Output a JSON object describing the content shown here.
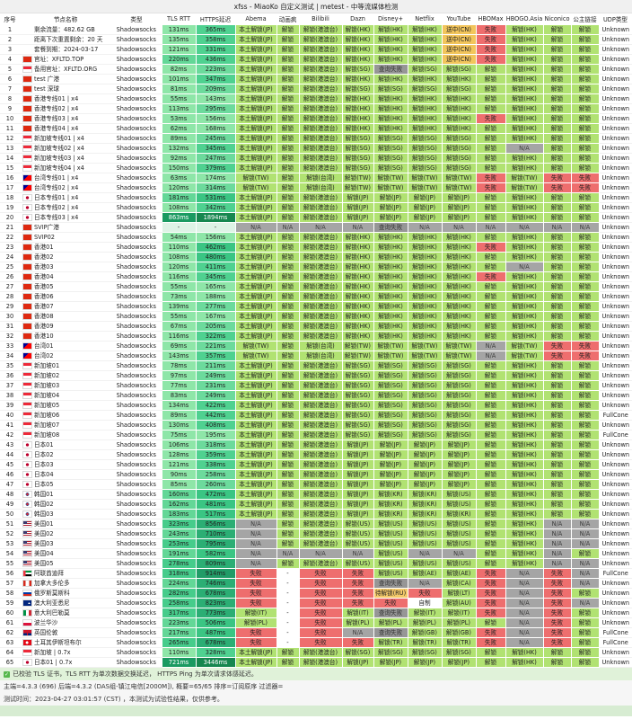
{
  "title": "xfss - MiaoKo 自定义测试 | metest - 中等流媒体检测",
  "table": {
    "columns": [
      "序号",
      "节点名称",
      "类型",
      "TLS RTT",
      "HTTPS延迟",
      "Abema",
      "动画疯",
      "Bilibili",
      "Dazn",
      "Disney+",
      "Netflix",
      "YouTube",
      "HBOMax",
      "HBOGO.Asia",
      "Niconico",
      "公主链接",
      "UDP类型"
    ],
    "type_label": "Shadowsocks",
    "rows": [
      [
        "",
        "剩余流量：482.62 GB",
        "131ms",
        "365ms",
        "本土解锁(JP)",
        "解锁",
        "解锁(港澳台)",
        "解锁(HK)",
        "解锁(HK)",
        "解锁(HK)",
        "送中(CN)",
        "失败",
        "解锁(HK)",
        "解锁",
        "解锁",
        "Unknown"
      ],
      [
        "",
        "距离下次重置剩余：20 天",
        "135ms",
        "358ms",
        "本土解锁(JP)",
        "解锁",
        "解锁(港澳台)",
        "解锁(HK)",
        "解锁(HK)",
        "解锁(HK)",
        "送中(CN)",
        "失败",
        "解锁(HK)",
        "解锁",
        "解锁",
        "Unknown"
      ],
      [
        "",
        "套餐到期：2024-03-17",
        "121ms",
        "331ms",
        "本土解锁(JP)",
        "解锁",
        "解锁(港澳台)",
        "解锁(HK)",
        "解锁(HK)",
        "解锁(HK)",
        "送中(CN)",
        "失败",
        "解锁(HK)",
        "解锁",
        "解锁",
        "Unknown"
      ],
      [
        "hk",
        "官址：XFLTD.TOP",
        "220ms",
        "436ms",
        "本土解锁(JP)",
        "解锁",
        "解锁(港澳台)",
        "解锁(HK)",
        "解锁(HK)",
        "解锁(HK)",
        "送中(CN)",
        "失败",
        "解锁(HK)",
        "解锁",
        "解锁",
        "Unknown"
      ],
      [
        "sg",
        "备用官址：XFLTD.ORG",
        "82ms",
        "223ms",
        "本土解锁(JP)",
        "解锁",
        "解锁(港澳台)",
        "解锁(SG)",
        "查询失败",
        "解锁(SG)",
        "解锁(SG)",
        "解锁",
        "解锁(HK)",
        "解锁",
        "解锁",
        "Unknown"
      ],
      [
        "hk",
        "test 广港",
        "101ms",
        "347ms",
        "本土解锁(JP)",
        "解锁",
        "解锁(港澳台)",
        "解锁(HK)",
        "解锁(HK)",
        "解锁(HK)",
        "解锁(HK)",
        "解锁",
        "解锁(HK)",
        "解锁",
        "解锁",
        "Unknown"
      ],
      [
        "hk",
        "test 深球",
        "81ms",
        "209ms",
        "本土解锁(JP)",
        "解锁",
        "解锁(港澳台)",
        "解锁(SG)",
        "解锁(SG)",
        "解锁(SG)",
        "解锁(SG)",
        "解锁",
        "解锁(HK)",
        "解锁",
        "解锁",
        "Unknown"
      ],
      [
        "hk",
        "香港专线01 | x4",
        "55ms",
        "143ms",
        "本土解锁(JP)",
        "解锁",
        "解锁(港澳台)",
        "解锁(HK)",
        "解锁(HK)",
        "解锁(HK)",
        "解锁(HK)",
        "解锁",
        "解锁(HK)",
        "解锁",
        "解锁",
        "Unknown"
      ],
      [
        "hk",
        "香港专线02 | x4",
        "113ms",
        "295ms",
        "本土解锁(JP)",
        "解锁",
        "解锁(港澳台)",
        "解锁(HK)",
        "解锁(HK)",
        "解锁(HK)",
        "解锁(HK)",
        "解锁",
        "解锁(HK)",
        "解锁",
        "解锁",
        "Unknown"
      ],
      [
        "hk",
        "香港专线03 | x4",
        "53ms",
        "156ms",
        "本土解锁(JP)",
        "解锁",
        "解锁(港澳台)",
        "解锁(HK)",
        "解锁(HK)",
        "解锁(HK)",
        "解锁(HK)",
        "失败",
        "解锁(HK)",
        "解锁",
        "解锁",
        "Unknown"
      ],
      [
        "hk",
        "香港专线04 | x4",
        "62ms",
        "168ms",
        "本土解锁(JP)",
        "解锁",
        "解锁(港澳台)",
        "解锁(HK)",
        "解锁(HK)",
        "解锁(HK)",
        "解锁(HK)",
        "解锁",
        "解锁(HK)",
        "解锁",
        "解锁",
        "Unknown"
      ],
      [
        "sg",
        "新加坡专线01 | x4",
        "89ms",
        "245ms",
        "本土解锁(JP)",
        "解锁",
        "解锁(港澳台)",
        "解锁(SG)",
        "解锁(SG)",
        "解锁(SG)",
        "解锁(SG)",
        "解锁",
        "解锁(HK)",
        "解锁",
        "解锁",
        "Unknown"
      ],
      [
        "sg",
        "新加坡专线02 | x4",
        "132ms",
        "345ms",
        "本土解锁(JP)",
        "解锁",
        "解锁(港澳台)",
        "解锁(SG)",
        "解锁(SG)",
        "解锁(SG)",
        "解锁(SG)",
        "解锁",
        "N/A",
        "解锁",
        "解锁",
        "Unknown"
      ],
      [
        "sg",
        "新加坡专线03 | x4",
        "92ms",
        "247ms",
        "本土解锁(JP)",
        "解锁",
        "解锁(港澳台)",
        "解锁(SG)",
        "解锁(SG)",
        "解锁(SG)",
        "解锁(SG)",
        "解锁",
        "解锁(HK)",
        "解锁",
        "解锁",
        "Unknown"
      ],
      [
        "sg",
        "新加坡专线04 | x4",
        "150ms",
        "379ms",
        "本土解锁(JP)",
        "解锁",
        "解锁(港澳台)",
        "解锁(SG)",
        "解锁(SG)",
        "解锁(SG)",
        "解锁(SG)",
        "解锁",
        "解锁(HK)",
        "解锁",
        "解锁",
        "Unknown"
      ],
      [
        "tw",
        "台湾专线01 | x4",
        "63ms",
        "174ms",
        "解锁(TW)",
        "解锁",
        "解锁(台湾)",
        "解锁(TW)",
        "解锁(TW)",
        "解锁(TW)",
        "解锁(TW)",
        "失败",
        "解锁(TW)",
        "失败",
        "失败",
        "Unknown"
      ],
      [
        "tw",
        "台湾专线02 | x4",
        "120ms",
        "314ms",
        "解锁(TW)",
        "解锁",
        "解锁(台湾)",
        "解锁(TW)",
        "解锁(TW)",
        "解锁(TW)",
        "解锁(TW)",
        "失败",
        "解锁(TW)",
        "失败",
        "失败",
        "Unknown"
      ],
      [
        "jp",
        "日本专线01 | x4",
        "181ms",
        "531ms",
        "本土解锁(JP)",
        "解锁",
        "解锁(港澳台)",
        "解锁(JP)",
        "解锁(JP)",
        "解锁(JP)",
        "解锁(JP)",
        "解锁",
        "解锁(HK)",
        "解锁",
        "解锁",
        "Unknown"
      ],
      [
        "jp",
        "日本专线02 | x4",
        "108ms",
        "342ms",
        "本土解锁(JP)",
        "解锁",
        "解锁(港澳台)",
        "解锁(JP)",
        "解锁(JP)",
        "解锁(JP)",
        "解锁(JP)",
        "解锁",
        "解锁(HK)",
        "解锁",
        "解锁",
        "Unknown"
      ],
      [
        "jp",
        "日本专线03 | x4",
        "863ms",
        "1894ms",
        "本土解锁(JP)",
        "解锁",
        "解锁(港澳台)",
        "解锁(JP)",
        "解锁(JP)",
        "解锁(JP)",
        "解锁(JP)",
        "解锁",
        "解锁(HK)",
        "解锁",
        "解锁",
        "Unknown"
      ],
      [
        "hk",
        "SVIP广港",
        "-",
        "-",
        "N/A",
        "N/A",
        "N/A",
        "N/A",
        "查询失败",
        "N/A",
        "N/A",
        "N/A",
        "N/A",
        "N/A",
        "N/A",
        "Unknown"
      ],
      [
        "hk",
        "SVIP02",
        "54ms",
        "156ms",
        "本土解锁(JP)",
        "解锁",
        "解锁(港澳台)",
        "解锁(HK)",
        "解锁(HK)",
        "解锁(HK)",
        "解锁(HK)",
        "解锁",
        "解锁(HK)",
        "解锁",
        "解锁",
        "Unknown"
      ],
      [
        "hk",
        "香港01",
        "110ms",
        "462ms",
        "本土解锁(JP)",
        "解锁",
        "解锁(港澳台)",
        "解锁(HK)",
        "解锁(HK)",
        "解锁(HK)",
        "解锁(HK)",
        "失败",
        "解锁(HK)",
        "解锁",
        "解锁",
        "Unknown"
      ],
      [
        "hk",
        "香港02",
        "108ms",
        "480ms",
        "本土解锁(JP)",
        "解锁",
        "解锁(港澳台)",
        "解锁(HK)",
        "解锁(HK)",
        "解锁(HK)",
        "解锁(HK)",
        "解锁",
        "解锁(HK)",
        "解锁",
        "解锁",
        "Unknown"
      ],
      [
        "hk",
        "香港03",
        "120ms",
        "411ms",
        "本土解锁(JP)",
        "解锁",
        "解锁(港澳台)",
        "解锁(HK)",
        "解锁(HK)",
        "解锁(HK)",
        "解锁(HK)",
        "解锁",
        "N/A",
        "解锁",
        "解锁",
        "Unknown"
      ],
      [
        "hk",
        "香港04",
        "116ms",
        "345ms",
        "本土解锁(JP)",
        "解锁",
        "解锁(港澳台)",
        "解锁(HK)",
        "解锁(HK)",
        "解锁(HK)",
        "解锁(HK)",
        "失败",
        "解锁(HK)",
        "解锁",
        "解锁",
        "Unknown"
      ],
      [
        "hk",
        "香港05",
        "55ms",
        "165ms",
        "本土解锁(JP)",
        "解锁",
        "解锁(港澳台)",
        "解锁(HK)",
        "解锁(HK)",
        "解锁(HK)",
        "解锁(HK)",
        "解锁",
        "解锁(HK)",
        "解锁",
        "解锁",
        "Unknown"
      ],
      [
        "hk",
        "香港06",
        "73ms",
        "188ms",
        "本土解锁(JP)",
        "解锁",
        "解锁(港澳台)",
        "解锁(HK)",
        "解锁(HK)",
        "解锁(HK)",
        "解锁(HK)",
        "解锁",
        "解锁(HK)",
        "解锁",
        "解锁",
        "Unknown"
      ],
      [
        "hk",
        "香港07",
        "139ms",
        "277ms",
        "本土解锁(JP)",
        "解锁",
        "解锁(港澳台)",
        "解锁(HK)",
        "解锁(HK)",
        "解锁(HK)",
        "解锁(HK)",
        "解锁",
        "解锁(HK)",
        "解锁",
        "解锁",
        "Unknown"
      ],
      [
        "hk",
        "香港08",
        "55ms",
        "167ms",
        "本土解锁(JP)",
        "解锁",
        "解锁(港澳台)",
        "解锁(HK)",
        "解锁(HK)",
        "解锁(HK)",
        "解锁(HK)",
        "解锁",
        "解锁(HK)",
        "解锁",
        "解锁",
        "Unknown"
      ],
      [
        "hk",
        "香港09",
        "67ms",
        "205ms",
        "本土解锁(JP)",
        "解锁",
        "解锁(港澳台)",
        "解锁(HK)",
        "解锁(HK)",
        "解锁(HK)",
        "解锁(HK)",
        "解锁",
        "解锁(HK)",
        "解锁",
        "解锁",
        "Unknown"
      ],
      [
        "hk",
        "香港10",
        "116ms",
        "322ms",
        "本土解锁(JP)",
        "解锁",
        "解锁(港澳台)",
        "解锁(HK)",
        "解锁(HK)",
        "解锁(HK)",
        "解锁(HK)",
        "解锁",
        "解锁(HK)",
        "解锁",
        "解锁",
        "Unknown"
      ],
      [
        "tw",
        "台湾01",
        "69ms",
        "221ms",
        "解锁(TW)",
        "解锁",
        "解锁(台湾)",
        "解锁(TW)",
        "解锁(TW)",
        "解锁(TW)",
        "解锁(TW)",
        "N/A",
        "解锁(TW)",
        "失败",
        "失败",
        "Unknown"
      ],
      [
        "tw",
        "台湾02",
        "143ms",
        "357ms",
        "解锁(TW)",
        "解锁",
        "解锁(台湾)",
        "解锁(TW)",
        "解锁(TW)",
        "解锁(TW)",
        "解锁(TW)",
        "N/A",
        "解锁(TW)",
        "失败",
        "失败",
        "Unknown"
      ],
      [
        "sg",
        "新加坡01",
        "78ms",
        "211ms",
        "本土解锁(JP)",
        "解锁",
        "解锁(港澳台)",
        "解锁(SG)",
        "解锁(SG)",
        "解锁(SG)",
        "解锁(SG)",
        "解锁",
        "解锁(HK)",
        "解锁",
        "解锁",
        "Unknown"
      ],
      [
        "sg",
        "新加坡02",
        "97ms",
        "249ms",
        "本土解锁(JP)",
        "解锁",
        "解锁(港澳台)",
        "解锁(SG)",
        "解锁(SG)",
        "解锁(SG)",
        "解锁(SG)",
        "解锁",
        "解锁(HK)",
        "解锁",
        "解锁",
        "Unknown"
      ],
      [
        "sg",
        "新加坡03",
        "77ms",
        "231ms",
        "本土解锁(JP)",
        "解锁",
        "解锁(港澳台)",
        "解锁(SG)",
        "解锁(SG)",
        "解锁(SG)",
        "解锁(SG)",
        "解锁",
        "解锁(HK)",
        "解锁",
        "解锁",
        "Unknown"
      ],
      [
        "sg",
        "新加坡04",
        "83ms",
        "249ms",
        "本土解锁(JP)",
        "解锁",
        "解锁(港澳台)",
        "解锁(SG)",
        "解锁(SG)",
        "解锁(SG)",
        "解锁(SG)",
        "解锁",
        "解锁(HK)",
        "解锁",
        "解锁",
        "Unknown"
      ],
      [
        "sg",
        "新加坡05",
        "134ms",
        "422ms",
        "本土解锁(JP)",
        "解锁",
        "解锁(港澳台)",
        "解锁(SG)",
        "解锁(SG)",
        "解锁(SG)",
        "解锁(SG)",
        "解锁",
        "解锁(HK)",
        "解锁",
        "解锁",
        "Unknown"
      ],
      [
        "sg",
        "新加坡06",
        "89ms",
        "442ms",
        "本土解锁(JP)",
        "解锁",
        "解锁(港澳台)",
        "解锁(SG)",
        "解锁(SG)",
        "解锁(SG)",
        "解锁(SG)",
        "解锁",
        "解锁(HK)",
        "解锁",
        "解锁",
        "FullCone"
      ],
      [
        "sg",
        "新加坡07",
        "130ms",
        "408ms",
        "本土解锁(JP)",
        "解锁",
        "解锁(港澳台)",
        "解锁(SG)",
        "解锁(SG)",
        "解锁(SG)",
        "解锁(SG)",
        "解锁",
        "解锁(HK)",
        "解锁",
        "解锁",
        "Unknown"
      ],
      [
        "sg",
        "新加坡08",
        "75ms",
        "195ms",
        "本土解锁(JP)",
        "解锁",
        "解锁(港澳台)",
        "解锁(SG)",
        "解锁(SG)",
        "解锁(SG)",
        "解锁(SG)",
        "解锁",
        "解锁(HK)",
        "解锁",
        "解锁",
        "FullCone"
      ],
      [
        "jp",
        "日本01",
        "106ms",
        "318ms",
        "本土解锁(JP)",
        "解锁",
        "解锁(港澳台)",
        "解锁(JP)",
        "解锁(JP)",
        "解锁(JP)",
        "解锁(JP)",
        "解锁",
        "解锁(HK)",
        "解锁",
        "解锁",
        "Unknown"
      ],
      [
        "jp",
        "日本02",
        "128ms",
        "359ms",
        "本土解锁(JP)",
        "解锁",
        "解锁(港澳台)",
        "解锁(JP)",
        "解锁(JP)",
        "解锁(JP)",
        "解锁(JP)",
        "解锁",
        "解锁(HK)",
        "解锁",
        "解锁",
        "Unknown"
      ],
      [
        "jp",
        "日本03",
        "121ms",
        "338ms",
        "本土解锁(JP)",
        "解锁",
        "解锁(港澳台)",
        "解锁(JP)",
        "解锁(JP)",
        "解锁(JP)",
        "解锁(JP)",
        "解锁",
        "解锁(HK)",
        "解锁",
        "解锁",
        "Unknown"
      ],
      [
        "jp",
        "日本04",
        "90ms",
        "258ms",
        "本土解锁(JP)",
        "解锁",
        "解锁(港澳台)",
        "解锁(JP)",
        "解锁(JP)",
        "解锁(JP)",
        "解锁(JP)",
        "解锁",
        "解锁(HK)",
        "解锁",
        "解锁",
        "Unknown"
      ],
      [
        "jp",
        "日本05",
        "85ms",
        "260ms",
        "本土解锁(JP)",
        "解锁",
        "解锁(港澳台)",
        "解锁(JP)",
        "解锁(JP)",
        "解锁(JP)",
        "解锁(JP)",
        "解锁",
        "解锁(HK)",
        "解锁",
        "解锁",
        "Unknown"
      ],
      [
        "kr",
        "韩国01",
        "160ms",
        "472ms",
        "本土解锁(JP)",
        "解锁",
        "解锁(港澳台)",
        "解锁(JP)",
        "解锁(KR)",
        "解锁(KR)",
        "解锁(US)",
        "解锁",
        "解锁(HK)",
        "解锁",
        "解锁",
        "Unknown"
      ],
      [
        "kr",
        "韩国02",
        "162ms",
        "481ms",
        "本土解锁(JP)",
        "解锁",
        "解锁(港澳台)",
        "解锁(JP)",
        "解锁(KR)",
        "解锁(KR)",
        "解锁(US)",
        "解锁",
        "解锁(HK)",
        "解锁",
        "解锁",
        "Unknown"
      ],
      [
        "kr",
        "韩国03",
        "183ms",
        "517ms",
        "本土解锁(JP)",
        "解锁",
        "解锁(港澳台)",
        "解锁(JP)",
        "解锁(KR)",
        "解锁(KR)",
        "解锁(KR)",
        "解锁",
        "解锁(HK)",
        "解锁",
        "解锁",
        "Unknown"
      ],
      [
        "us",
        "美国01",
        "323ms",
        "856ms",
        "N/A",
        "解锁",
        "解锁(港澳台)",
        "解锁(US)",
        "解锁(US)",
        "解锁(US)",
        "解锁(US)",
        "解锁",
        "解锁(HK)",
        "N/A",
        "N/A",
        "Unknown"
      ],
      [
        "us",
        "美国02",
        "243ms",
        "710ms",
        "N/A",
        "解锁",
        "解锁(港澳台)",
        "解锁(US)",
        "解锁(US)",
        "解锁(US)",
        "解锁(US)",
        "解锁",
        "解锁(HK)",
        "N/A",
        "N/A",
        "Unknown"
      ],
      [
        "us",
        "美国03",
        "253ms",
        "795ms",
        "N/A",
        "解锁",
        "解锁(港澳台)",
        "解锁(US)",
        "解锁(US)",
        "解锁(US)",
        "解锁(US)",
        "解锁",
        "解锁(HK)",
        "N/A",
        "N/A",
        "Unknown"
      ],
      [
        "us",
        "美国04",
        "191ms",
        "582ms",
        "N/A",
        "N/A",
        "N/A",
        "N/A",
        "解锁(US)",
        "N/A",
        "N/A",
        "解锁",
        "解锁(HK)",
        "N/A",
        "解锁",
        "Unknown"
      ],
      [
        "us",
        "美国05",
        "278ms",
        "809ms",
        "N/A",
        "解锁",
        "解锁(港澳台)",
        "解锁(US)",
        "解锁(US)",
        "解锁(US)",
        "解锁(US)",
        "解锁",
        "解锁(HK)",
        "N/A",
        "N/A",
        "Unknown"
      ],
      [
        "ae",
        "阿联酋迪拜",
        "318ms",
        "914ms",
        "失败",
        "-",
        "失败",
        "失败",
        "解锁(US)",
        "解锁(AE)",
        "解锁(AE)",
        "失败",
        "N/A",
        "失败",
        "N/A",
        "FullCone"
      ],
      [
        "ca",
        "加拿大多伦多",
        "224ms",
        "746ms",
        "失败",
        "-",
        "失败",
        "失败",
        "查询失败",
        "N/A",
        "解锁(CA)",
        "失败",
        "N/A",
        "失败",
        "N/A",
        "Unknown"
      ],
      [
        "ru",
        "俄罗斯莫斯科",
        "282ms",
        "678ms",
        "失败",
        "-",
        "失败",
        "失败",
        "待解锁(RU)",
        "失败",
        "解锁(LT)",
        "失败",
        "N/A",
        "失败",
        "解锁",
        "Unknown"
      ],
      [
        "au",
        "澳大利亚悉尼",
        "258ms",
        "823ms",
        "失败",
        "-",
        "失败",
        "失败",
        "失败",
        "自制",
        "解锁(AU)",
        "失败",
        "N/A",
        "失败",
        "N/A",
        "Unknown"
      ],
      [
        "it",
        "意大利巴勒莫",
        "317ms",
        "773ms",
        "解锁(IT)",
        "-",
        "失败",
        "解锁(IT)",
        "查询失败",
        "解锁(IT)",
        "解锁(IT)",
        "失败",
        "N/A",
        "失败",
        "解锁",
        "Unknown"
      ],
      [
        "pl",
        "波兰华沙",
        "223ms",
        "506ms",
        "解锁(PL)",
        "-",
        "失败",
        "解锁(PL)",
        "解锁(PL)",
        "解锁(PL)",
        "解锁(PL)",
        "解锁",
        "N/A",
        "失败",
        "解锁",
        "Unknown"
      ],
      [
        "gb",
        "英国伦敦",
        "217ms",
        "487ms",
        "失败",
        "-",
        "失败",
        "N/A",
        "查询失败",
        "解锁(GB)",
        "解锁(GB)",
        "失败",
        "N/A",
        "失败",
        "解锁",
        "FullCone"
      ],
      [
        "tr",
        "土耳其伊斯坦布尔",
        "265ms",
        "678ms",
        "失败",
        "-",
        "失败",
        "失败",
        "解锁(TR)",
        "解锁(TR)",
        "解锁(TR)",
        "失败",
        "N/A",
        "失败",
        "解锁",
        "FullCone"
      ],
      [
        "sg",
        "新加坡 | 0.7x",
        "110ms",
        "328ms",
        "本土解锁(JP)",
        "解锁",
        "解锁(港澳台)",
        "解锁(SG)",
        "解锁(SG)",
        "解锁(SG)",
        "解锁(SG)",
        "解锁",
        "解锁(HK)",
        "解锁",
        "解锁",
        "Unknown"
      ],
      [
        "jp",
        "日本01 | 0.7x",
        "721ms",
        "3446ms",
        "本土解锁(JP)",
        "解锁",
        "解锁(港澳台)",
        "解锁(JP)",
        "解锁(JP)",
        "解锁(JP)",
        "解锁(JP)",
        "解锁",
        "解锁(HK)",
        "解锁",
        "解锁",
        "Unknown"
      ]
    ]
  },
  "footer": {
    "line1": "已校验 TLS 证书，TLS RTT 为单次数据交换延迟， HTTPS Ping 为单次请求体感延迟。",
    "line2": "主端=4.3.3 (696) 后端=4.3.2 (DAS组-镇江电信[2000M]), 概要=65/65 排序=订阅原序 过滤器=",
    "line3": "测试时间：2023-04-27 03:01:57 (CST) ，本测试为试验性结果，仅供参考。"
  },
  "colors": {
    "unlock_green": "#b1e272",
    "fail_red": "#ee6e6e",
    "na_gray": "#a5a5a5",
    "warn_orange": "#f2c55c",
    "latency_fast": "#8ee6a8",
    "latency_slow_dark": "#16874f"
  }
}
